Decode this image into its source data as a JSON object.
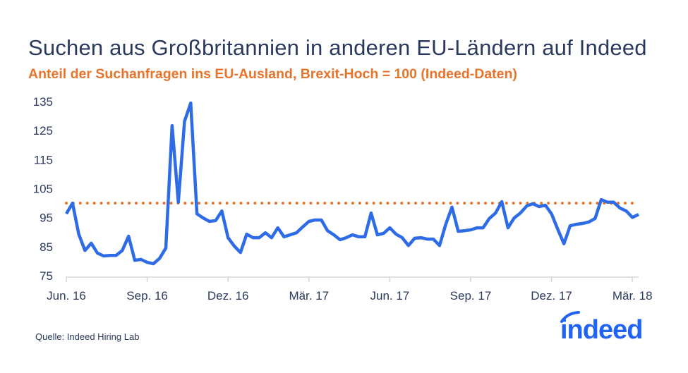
{
  "chart_data": {
    "type": "line",
    "title": "Suchen aus Großbritannien in anderen EU-Ländern auf Indeed",
    "subtitle": "Anteil der Suchanfragen ins EU-Ausland, Brexit-Hoch = 100 (Indeed-Daten)",
    "xlabel": "",
    "ylabel": "",
    "ylim": [
      75,
      135
    ],
    "y_ticks": [
      "135",
      "125",
      "115",
      "105",
      "95",
      "85",
      "75"
    ],
    "x_tick_labels": [
      "Jun. 16",
      "Sep. 16",
      "Dez. 16",
      "Mär. 17",
      "Jun. 17",
      "Sep. 17",
      "Dez. 17",
      "Mär. 18"
    ],
    "grid": false,
    "reference_line": {
      "value": 100,
      "style": "dotted",
      "color": "#e8732a"
    },
    "series": [
      {
        "color": "#2e6be6",
        "values": [
          96.3,
          100,
          89.3,
          83.7,
          86.2,
          82.8,
          81.8,
          82,
          82,
          83.7,
          88.6,
          80.3,
          80.6,
          79.6,
          79.1,
          81,
          84.5,
          126.7,
          100.3,
          128.2,
          134.5,
          96.3,
          94.9,
          93.7,
          94,
          97.3,
          88.1,
          85.2,
          83,
          89.3,
          88.1,
          88.1,
          89.8,
          88.1,
          91.5,
          88.4,
          89.1,
          89.8,
          91.8,
          93.7,
          94.2,
          94.2,
          90.5,
          89.1,
          87.4,
          88.1,
          89.1,
          88.4,
          88.4,
          96.6,
          89.1,
          89.6,
          91.5,
          89.3,
          88.1,
          85.4,
          87.9,
          88.1,
          87.6,
          87.6,
          85.4,
          92.7,
          98.6,
          90.3,
          90.5,
          90.8,
          91.5,
          91.5,
          94.7,
          96.6,
          100.5,
          91.5,
          94.9,
          96.6,
          99,
          99.8,
          98.8,
          99.3,
          96.3,
          91,
          86,
          92.2,
          92.7,
          93,
          93.5,
          94.7,
          101.2,
          100.3,
          100.3,
          98.3,
          97.3,
          95.1,
          96.1
        ]
      }
    ]
  },
  "footer": {
    "source": "Quelle: Indeed Hiring Lab",
    "logo_text": "indeed",
    "logo_color": "#2164f3"
  }
}
